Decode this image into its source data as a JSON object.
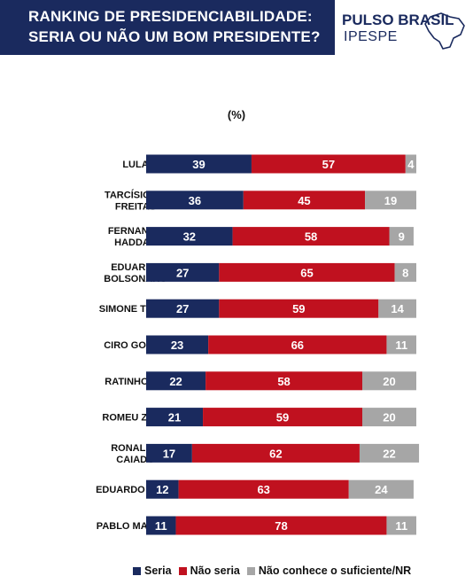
{
  "header": {
    "title_line1": "RANKING DE PRESIDENCIABILIDADE:",
    "title_line2": "SERIA OU NÃO UM BOM PRESIDENTE?",
    "brand_name": "PULSO BRASIL",
    "brand_sub": "IPESPE"
  },
  "colors": {
    "seria": "#1a2a5e",
    "nao_seria": "#c0111f",
    "nao_conhece": "#a6a6a6",
    "header_bg": "#1a2a5e"
  },
  "chart_data": {
    "type": "bar",
    "orientation": "horizontal",
    "stacked": true,
    "unit_label": "(%)",
    "categories": [
      "LULA",
      "TARCÍSIO DE FREITAS",
      "FERNANDO HADDAD",
      "EDUARDO BOLSONARO",
      "SIMONE TEBET",
      "CIRO GOMES",
      "RATINHO JR.",
      "ROMEU ZEMA",
      "RONALDO CAIADO",
      "EDUARDO LEITE",
      "PABLO MARÇAL"
    ],
    "category_lines": [
      [
        "LULA"
      ],
      [
        "TARCÍSIO DE",
        "FREITAS"
      ],
      [
        "FERNANDO",
        "HADDAD"
      ],
      [
        "EDUARDO",
        "BOLSONARO"
      ],
      [
        "SIMONE TEBET"
      ],
      [
        "CIRO GOMES"
      ],
      [
        "RATINHO JR."
      ],
      [
        "ROMEU ZEMA"
      ],
      [
        "RONALDO",
        "CAIADO"
      ],
      [
        "EDUARDO LEITE"
      ],
      [
        "PABLO MARÇAL"
      ]
    ],
    "series": [
      {
        "name": "Seria",
        "values": [
          39,
          36,
          32,
          27,
          27,
          23,
          22,
          21,
          17,
          12,
          11
        ]
      },
      {
        "name": "Não seria",
        "values": [
          57,
          45,
          58,
          65,
          59,
          66,
          58,
          59,
          62,
          63,
          78
        ]
      },
      {
        "name": "Não conhece o suficiente/NR",
        "values": [
          4,
          19,
          9,
          8,
          14,
          11,
          20,
          20,
          22,
          24,
          11
        ]
      }
    ],
    "xlim": [
      0,
      100
    ],
    "legend_position": "bottom"
  }
}
